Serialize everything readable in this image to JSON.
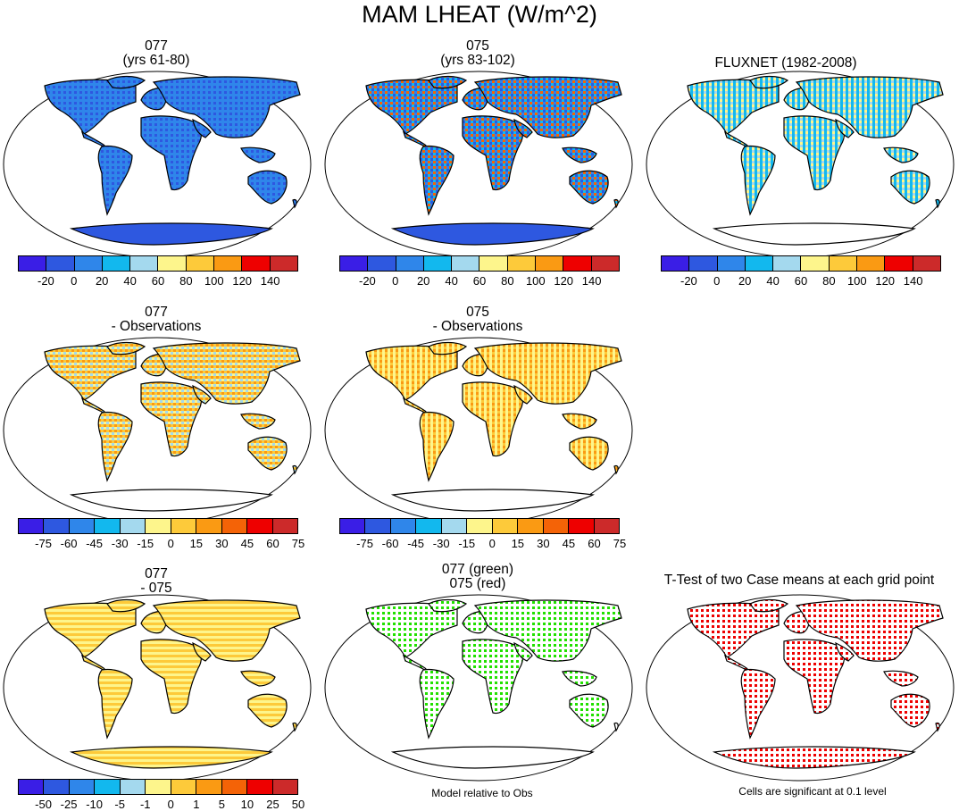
{
  "title": "MAM LHEAT (W/m^2)",
  "panels": [
    {
      "line1": "077",
      "line2": "(yrs 61-80)"
    },
    {
      "line1": "075",
      "line2": "(yrs 83-102)"
    },
    {
      "line1": "FLUXNET (1982-2008)",
      "line2": ""
    },
    {
      "line1": "077",
      "line2": "- Observations"
    },
    {
      "line1": "075",
      "line2": "- Observations"
    },
    {
      "line1": "077",
      "line2": "- 075"
    },
    {
      "line1": "077 (green)",
      "line2": "075 (red)"
    },
    {
      "line1": "T-Test of two Case means at each grid point",
      "line2": ""
    }
  ],
  "colorbars": {
    "field": {
      "labels": [
        "-20",
        "0",
        "20",
        "40",
        "60",
        "80",
        "100",
        "120",
        "140"
      ]
    },
    "diff": {
      "labels": [
        "-75",
        "-60",
        "-45",
        "-30",
        "-15",
        "0",
        "15",
        "30",
        "45",
        "60",
        "75"
      ]
    },
    "diff2": {
      "labels": [
        "-50",
        "-25",
        "-10",
        "-5",
        "-1",
        "0",
        "1",
        "5",
        "10",
        "25",
        "50"
      ]
    },
    "colors_11": [
      "#3a1ee6",
      "#2e58e0",
      "#2f86ea",
      "#12b8ee",
      "#a4d9ee",
      "#fdf58c",
      "#fdca3a",
      "#fa9a13",
      "#f46307",
      "#ee0000",
      "#cc2a2a"
    ],
    "colors_10": [
      "#3a1ee6",
      "#2e58e0",
      "#2f86ea",
      "#12b8ee",
      "#a4d9ee",
      "#fdf58c",
      "#fdca3a",
      "#fa9a13",
      "#ee0000",
      "#cc2a2a"
    ]
  },
  "notes": {
    "model_rel": "Model relative to Obs",
    "sig": "Cells are significant at 0.1 level"
  }
}
